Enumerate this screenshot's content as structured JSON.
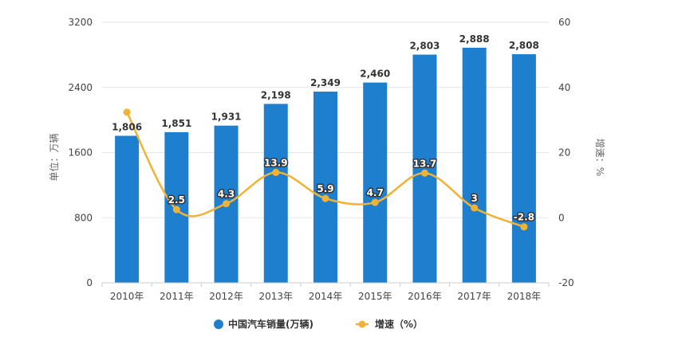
{
  "chart_data": {
    "type": "bar",
    "categories": [
      "2010年",
      "2011年",
      "2012年",
      "2013年",
      "2014年",
      "2015年",
      "2016年",
      "2017年",
      "2018年"
    ],
    "series": [
      {
        "name": "中国汽车销量(万辆)",
        "type": "bar",
        "axis": "left",
        "color": "#1f7fcf",
        "values": [
          1806,
          1851,
          1931,
          2198,
          2349,
          2460,
          2803,
          2888,
          2808
        ],
        "labels": [
          "1,806",
          "1,851",
          "1,931",
          "2,198",
          "2,349",
          "2,460",
          "2,803",
          "2,888",
          "2,808"
        ]
      },
      {
        "name": "增速（%）",
        "type": "line",
        "axis": "right",
        "color": "#f2b233",
        "values": [
          32.4,
          2.5,
          4.3,
          13.9,
          5.9,
          4.7,
          13.7,
          3,
          -2.8
        ],
        "labels": [
          "32.4",
          "2.5",
          "4.3",
          "13.9",
          "5.9",
          "4.7",
          "13.7",
          "3",
          "-2.8"
        ]
      }
    ],
    "y_left": {
      "label": "单位：万辆",
      "min": 0,
      "max": 3200,
      "ticks": [
        0,
        800,
        1600,
        2400,
        3200
      ]
    },
    "y_right": {
      "label": "增速：%",
      "min": -20,
      "max": 60,
      "ticks": [
        -20,
        0,
        20,
        40,
        60
      ]
    },
    "grid": true,
    "legend": "bottom-center"
  }
}
